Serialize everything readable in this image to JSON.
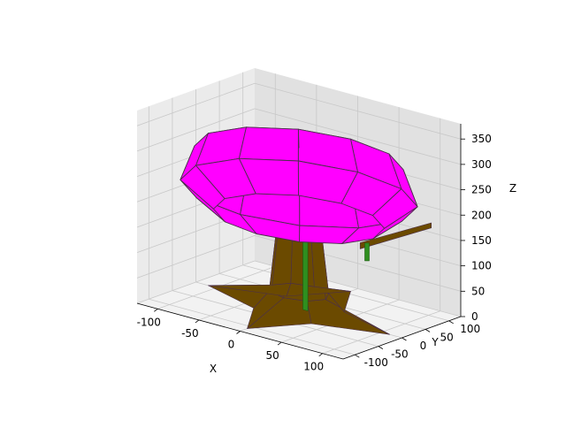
{
  "chart_data": {
    "type": "surface3d",
    "title": "",
    "xlabel": "X",
    "ylabel": "Y",
    "zlabel": "Z",
    "xlim": [
      -125,
      125
    ],
    "ylim": [
      -125,
      125
    ],
    "zlim": [
      0,
      380
    ],
    "xticks": [
      -100,
      -50,
      0,
      50,
      100
    ],
    "yticks": [
      -100,
      -50,
      0,
      50,
      100
    ],
    "zticks": [
      0,
      50,
      100,
      150,
      200,
      250,
      300,
      350
    ],
    "grid": true,
    "colors": {
      "canopy": "#ff00ff",
      "trunk": "#6b4a00",
      "stem": "#2f8f1f",
      "edge": "#4b2f4b",
      "pane_left": "#ebebeb",
      "pane_right": "#e1e1e1",
      "pane_floor": "#f2f2f2",
      "grid": "#c8c8c8"
    },
    "canopy": {
      "segments": 12,
      "top_z": 300,
      "mid_z": 230,
      "bottom_z": 180,
      "top_radius": 110,
      "mid_radius": 125,
      "bottom_radius": 90
    },
    "trunk": {
      "base_z": 0,
      "top_z": 150,
      "base_radius": 110,
      "top_radius": 25
    },
    "stem": {
      "x": 5,
      "y": 5,
      "z0": 0,
      "z1": 150
    },
    "branch": {
      "from": [
        40,
        60,
        130
      ],
      "to": [
        95,
        115,
        175
      ],
      "drop_z": 95
    }
  }
}
